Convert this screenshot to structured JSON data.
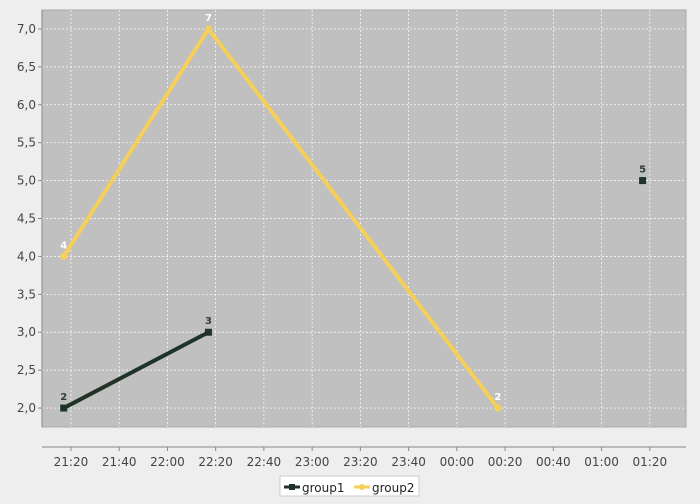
{
  "chart_data": {
    "type": "line",
    "title": "",
    "xlabel": "",
    "ylabel": "",
    "x_ticks": [
      "21:20",
      "21:40",
      "22:00",
      "22:20",
      "22:40",
      "23:00",
      "23:20",
      "23:40",
      "00:00",
      "00:20",
      "00:40",
      "01:00",
      "01:20"
    ],
    "y_ticks": [
      "2,0",
      "2,5",
      "3,0",
      "3,5",
      "4,0",
      "4,5",
      "5,0",
      "5,5",
      "6,0",
      "6,5",
      "7,0"
    ],
    "ylim": [
      1.75,
      7.25
    ],
    "xlim": [
      "21:08",
      "01:35"
    ],
    "grid": true,
    "legend_position": "bottom",
    "colors": {
      "plot_background": "#c0c0c0",
      "page_background": "#eeeeee",
      "grid": "#ffffff",
      "group1": "#1f3328",
      "group2": "#f5cf5a"
    },
    "series": [
      {
        "name": "group1",
        "color": "#1f3328",
        "marker": "square",
        "segments": [
          [
            {
              "x": "21:17",
              "y": 2,
              "label": "2"
            },
            {
              "x": "22:17",
              "y": 3,
              "label": "3"
            }
          ],
          [
            {
              "x": "01:17",
              "y": 5,
              "label": "5"
            }
          ]
        ]
      },
      {
        "name": "group2",
        "color": "#f5cf5a",
        "marker": "circle",
        "segments": [
          [
            {
              "x": "21:17",
              "y": 4,
              "label": "4"
            },
            {
              "x": "22:17",
              "y": 7,
              "label": "7"
            },
            {
              "x": "00:17",
              "y": 2,
              "label": "2"
            }
          ]
        ]
      }
    ]
  }
}
